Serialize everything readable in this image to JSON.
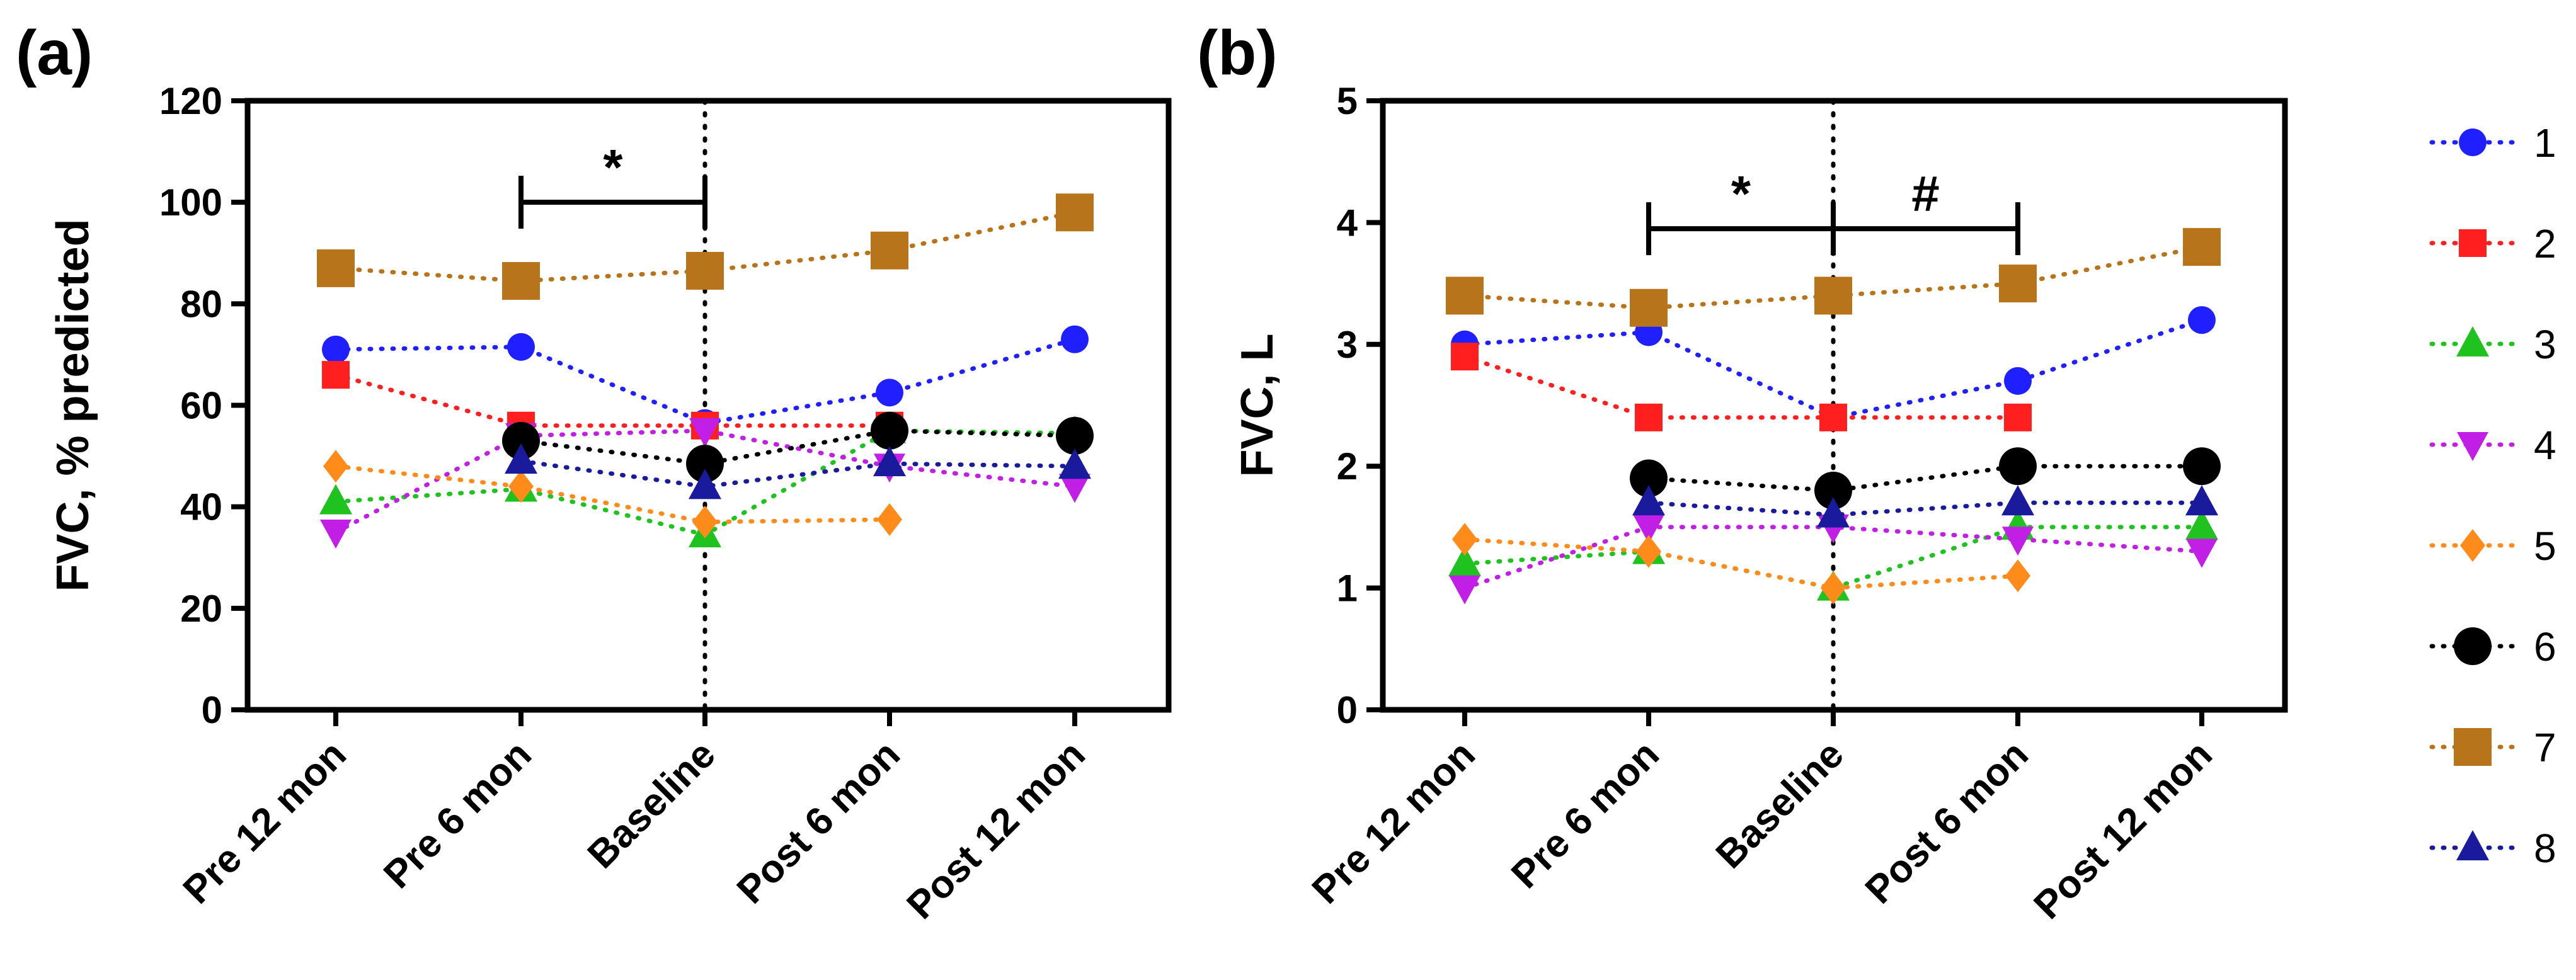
{
  "chart_data": [
    {
      "type": "line",
      "panel_label": "(a)",
      "title": "",
      "xlabel": "",
      "ylabel": "FVC, % predicted",
      "categories": [
        "Pre 12 mon",
        "Pre 6 mon",
        "Baseline",
        "Post 6 mon",
        "Post 12 mon"
      ],
      "ylim": [
        0,
        120
      ],
      "yticks": [
        "0",
        "20",
        "40",
        "60",
        "80",
        "100",
        "120"
      ],
      "grid": false,
      "reference_line": "Baseline",
      "annotations": [
        {
          "text": "*",
          "from": "Pre 6 mon",
          "to": "Baseline",
          "y": 100
        }
      ],
      "series": [
        {
          "name": "1",
          "values": [
            71,
            71.5,
            56.5,
            62.5,
            73
          ],
          "color": "#1f1fff",
          "marker": "circle"
        },
        {
          "name": "2",
          "values": [
            66,
            56,
            56,
            56,
            null
          ],
          "color": "#ff1f1f",
          "marker": "square"
        },
        {
          "name": "3",
          "values": [
            41,
            43.5,
            34.5,
            55,
            54.5
          ],
          "color": "#1fc21f",
          "marker": "triangle-up"
        },
        {
          "name": "4",
          "values": [
            35,
            54,
            55,
            48,
            44
          ],
          "color": "#c21fe6",
          "marker": "triangle-down"
        },
        {
          "name": "5",
          "values": [
            48,
            44,
            37,
            37.5,
            null
          ],
          "color": "#ff8c1a",
          "marker": "diamond"
        },
        {
          "name": "6",
          "values": [
            null,
            53,
            48.5,
            55,
            54
          ],
          "color": "#000000",
          "marker": "circle-large"
        },
        {
          "name": "7",
          "values": [
            87,
            84.5,
            86.5,
            90.5,
            98
          ],
          "color": "#b8741a",
          "marker": "square-large"
        },
        {
          "name": "8",
          "values": [
            null,
            49,
            44,
            48.5,
            48
          ],
          "color": "#1a1a9c",
          "marker": "triangle-up"
        }
      ]
    },
    {
      "type": "line",
      "panel_label": "(b)",
      "title": "",
      "xlabel": "",
      "ylabel": "FVC, L",
      "categories": [
        "Pre 12 mon",
        "Pre 6 mon",
        "Baseline",
        "Post 6 mon",
        "Post 12 mon"
      ],
      "ylim": [
        0,
        5
      ],
      "yticks": [
        "0",
        "1",
        "2",
        "3",
        "4",
        "5"
      ],
      "grid": false,
      "reference_line": "Baseline",
      "annotations": [
        {
          "text": "*",
          "from": "Pre 6 mon",
          "to": "Baseline",
          "y": 3.95
        },
        {
          "text": "#",
          "from": "Baseline",
          "to": "Post 6 mon",
          "y": 3.95
        }
      ],
      "series": [
        {
          "name": "1",
          "values": [
            3.0,
            3.1,
            2.4,
            2.7,
            3.2
          ],
          "color": "#1f1fff",
          "marker": "circle"
        },
        {
          "name": "2",
          "values": [
            2.9,
            2.4,
            2.4,
            2.4,
            null
          ],
          "color": "#ff1f1f",
          "marker": "square"
        },
        {
          "name": "3",
          "values": [
            1.2,
            1.3,
            1.0,
            1.5,
            1.5
          ],
          "color": "#1fc21f",
          "marker": "triangle-up"
        },
        {
          "name": "4",
          "values": [
            1.0,
            1.5,
            1.5,
            1.4,
            1.3
          ],
          "color": "#c21fe6",
          "marker": "triangle-down"
        },
        {
          "name": "5",
          "values": [
            1.4,
            1.3,
            1.0,
            1.1,
            null
          ],
          "color": "#ff8c1a",
          "marker": "diamond"
        },
        {
          "name": "6",
          "values": [
            null,
            1.9,
            1.8,
            2.0,
            2.0
          ],
          "color": "#000000",
          "marker": "circle-large"
        },
        {
          "name": "7",
          "values": [
            3.4,
            3.3,
            3.4,
            3.5,
            3.8
          ],
          "color": "#b8741a",
          "marker": "square-large"
        },
        {
          "name": "8",
          "values": [
            null,
            1.7,
            1.6,
            1.7,
            1.7
          ],
          "color": "#1a1a9c",
          "marker": "triangle-up"
        }
      ]
    }
  ],
  "legend": {
    "placement": "right",
    "items": [
      "1",
      "2",
      "3",
      "4",
      "5",
      "6",
      "7",
      "8"
    ]
  }
}
